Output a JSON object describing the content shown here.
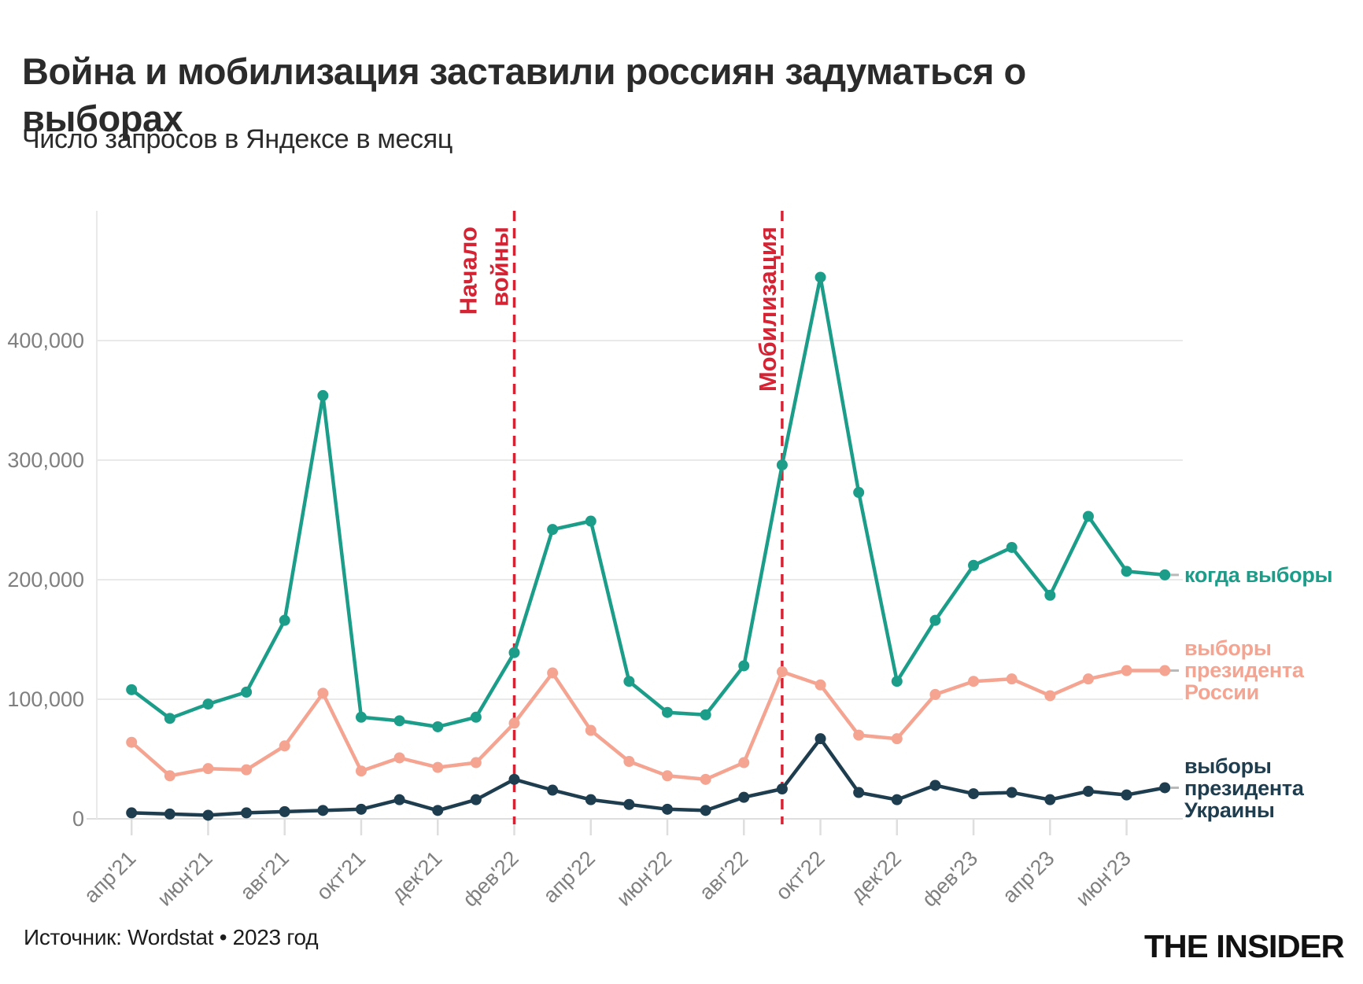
{
  "header": {
    "title": "Война и мобилизация заставили россиян задуматься о выборах",
    "subtitle": "Число запросов в Яндексе в месяц"
  },
  "footer": {
    "source": "Источник: Wordstat • 2023 год",
    "logo": "THE INSIDER"
  },
  "colors": {
    "teal": "#1b9d8a",
    "salmon": "#f4a491",
    "navy": "#1e3d4e",
    "red": "#d62334",
    "grid": "#e9e9e9",
    "axis": "#dedede",
    "tick_label": "#7f7f7f",
    "leader": "#b9b9b9"
  },
  "chart_data": {
    "type": "line",
    "title": "Война и мобилизация заставили россиян задуматься о выборах",
    "subtitle": "Число запросов в Яндексе в месяц",
    "x": [
      "апр'21",
      "май'21",
      "июн'21",
      "июл'21",
      "авг'21",
      "сен'21",
      "окт'21",
      "ноя'21",
      "дек'21",
      "янв'22",
      "фев'22",
      "мар'22",
      "апр'22",
      "май'22",
      "июн'22",
      "июл'22",
      "авг'22",
      "сен'22",
      "окт'22",
      "ноя'22",
      "дек'22",
      "янв'23",
      "фев'23",
      "мар'23",
      "апр'23",
      "май'23",
      "июн'23",
      "июл'23"
    ],
    "x_tick_labels": [
      "апр'21",
      "июн'21",
      "авг'21",
      "окт'21",
      "дек'21",
      "фев'22",
      "апр'22",
      "июн'22",
      "авг'22",
      "окт'22",
      "дек'22",
      "фев'23",
      "апр'23",
      "июн'23"
    ],
    "x_tick_step": 2,
    "series": [
      {
        "name": "когда выборы",
        "legend_label": "когда выборы",
        "color": "#1b9d8a",
        "values": [
          108000,
          84000,
          96000,
          106000,
          166000,
          354000,
          85000,
          82000,
          77000,
          85000,
          139000,
          242000,
          249000,
          115000,
          89000,
          87000,
          128000,
          296000,
          453000,
          273000,
          115000,
          166000,
          212000,
          227000,
          187000,
          253000,
          207000,
          204000
        ]
      },
      {
        "name": "выборы президента России",
        "legend_label": "выборы\nпрезидента\nРоссии",
        "color": "#f4a491",
        "values": [
          64000,
          36000,
          42000,
          41000,
          61000,
          105000,
          40000,
          51000,
          43000,
          47000,
          80000,
          122000,
          74000,
          48000,
          36000,
          33000,
          47000,
          123000,
          112000,
          70000,
          67000,
          104000,
          115000,
          117000,
          103000,
          117000,
          124000,
          124000
        ]
      },
      {
        "name": "выборы президента Украины",
        "legend_label": "выборы\nпрезидента\nУкраины",
        "color": "#1e3d4e",
        "values": [
          5000,
          4000,
          3000,
          5000,
          6000,
          7000,
          8000,
          16000,
          7000,
          16000,
          33000,
          24000,
          16000,
          12000,
          8000,
          7000,
          18000,
          25000,
          67000,
          22000,
          16000,
          28000,
          21000,
          22000,
          16000,
          23000,
          20000,
          26000
        ]
      }
    ],
    "annotations": [
      {
        "label_lines": [
          "Начало",
          "войны"
        ],
        "month": "фев'22",
        "month_index": 10
      },
      {
        "label_lines": [
          "Мобилизация"
        ],
        "month": "сен'22",
        "month_index": 17
      }
    ],
    "yticks": [
      0,
      100000,
      200000,
      300000,
      400000
    ],
    "ytick_labels": [
      "0",
      "100,000",
      "200,000",
      "300,000",
      "400,000"
    ],
    "ylim": [
      0,
      460000
    ],
    "grid": true,
    "legend_position": "right"
  }
}
